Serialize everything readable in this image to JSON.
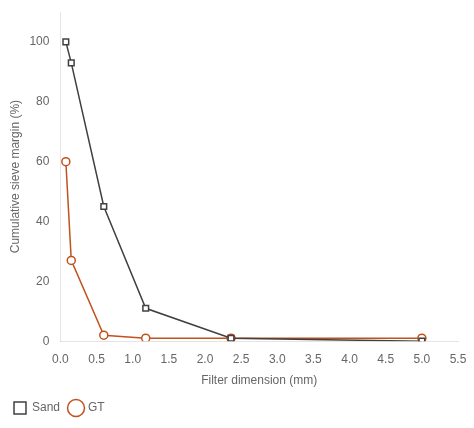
{
  "chart_data": {
    "type": "line",
    "x": [
      0.075,
      0.15,
      0.6,
      1.18,
      2.36,
      5.0
    ],
    "series": [
      {
        "name": "Sand",
        "color": "#404040",
        "marker": "square",
        "values": [
          100,
          93,
          45,
          11,
          1,
          0
        ]
      },
      {
        "name": "GT",
        "color": "#c0521f",
        "marker": "circle",
        "values": [
          60,
          27,
          2,
          1,
          1,
          1
        ]
      }
    ],
    "xlabel": "Filter dimension (mm)",
    "ylabel": "Cumulative sieve margin (%)",
    "xlim": [
      0,
      5.5
    ],
    "ylim": [
      0,
      110
    ],
    "xticks": [
      {
        "value": 0.0,
        "label": "0.0"
      },
      0.5,
      {
        "value": 1.0,
        "label": "1.0"
      },
      1.5,
      {
        "value": 2.0,
        "label": "2.0"
      },
      2.5,
      {
        "value": 3.0,
        "label": "3.0"
      },
      3.5,
      {
        "value": 4.0,
        "label": "4.0"
      },
      4.5,
      {
        "value": 5.0,
        "label": "5.0"
      },
      5.5
    ],
    "yticks": [
      0,
      20,
      40,
      60,
      80,
      100
    ],
    "grid": false,
    "legend": "bottom"
  }
}
